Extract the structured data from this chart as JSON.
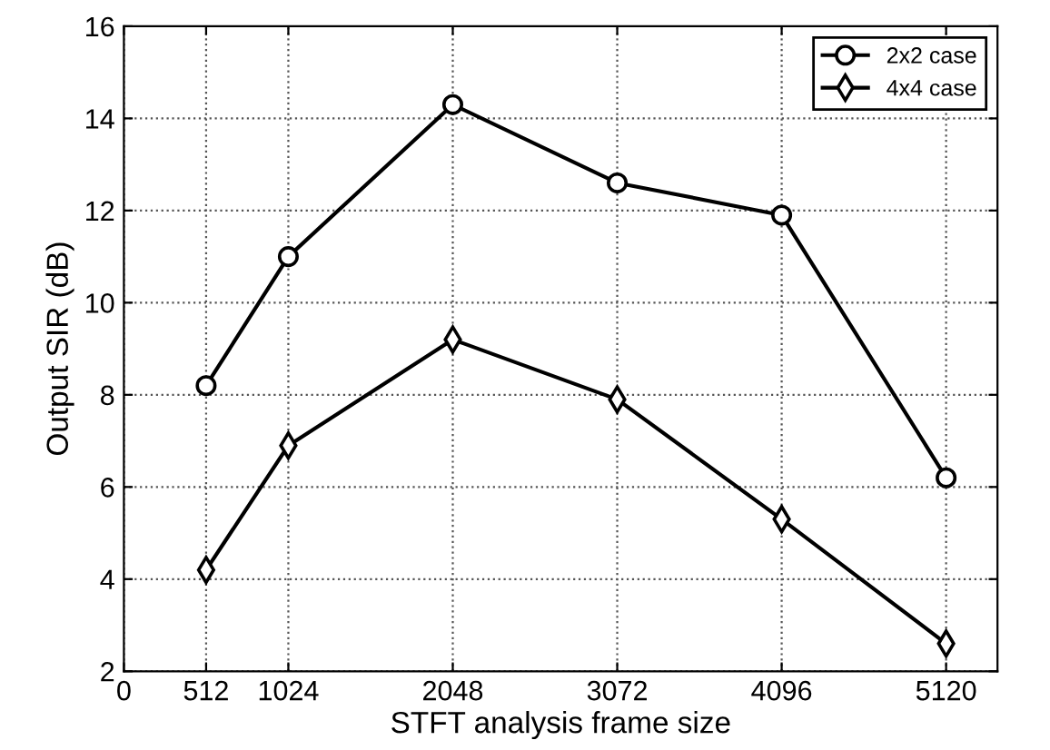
{
  "chart_data": {
    "type": "line",
    "xlabel": "STFT analysis frame size",
    "ylabel": "Output SIR (dB)",
    "x": [
      512,
      1024,
      2048,
      3072,
      4096,
      5120
    ],
    "series": [
      {
        "name": "2x2 case",
        "color": "#000000",
        "marker": "circle",
        "values": [
          8.2,
          11.0,
          14.3,
          12.6,
          11.9,
          6.2
        ]
      },
      {
        "name": "4x4 case",
        "color": "#000000",
        "marker": "diamond",
        "values": [
          4.2,
          6.9,
          9.2,
          7.9,
          5.3,
          2.6
        ]
      }
    ],
    "xlim": [
      0,
      5440
    ],
    "xticks": [
      0,
      512,
      1024,
      2048,
      3072,
      4096,
      5120
    ],
    "ylim": [
      2,
      16
    ],
    "yticks": [
      2,
      4,
      6,
      8,
      10,
      12,
      14,
      16
    ],
    "grid": true,
    "legend": "top right",
    "line_style": "solid"
  }
}
